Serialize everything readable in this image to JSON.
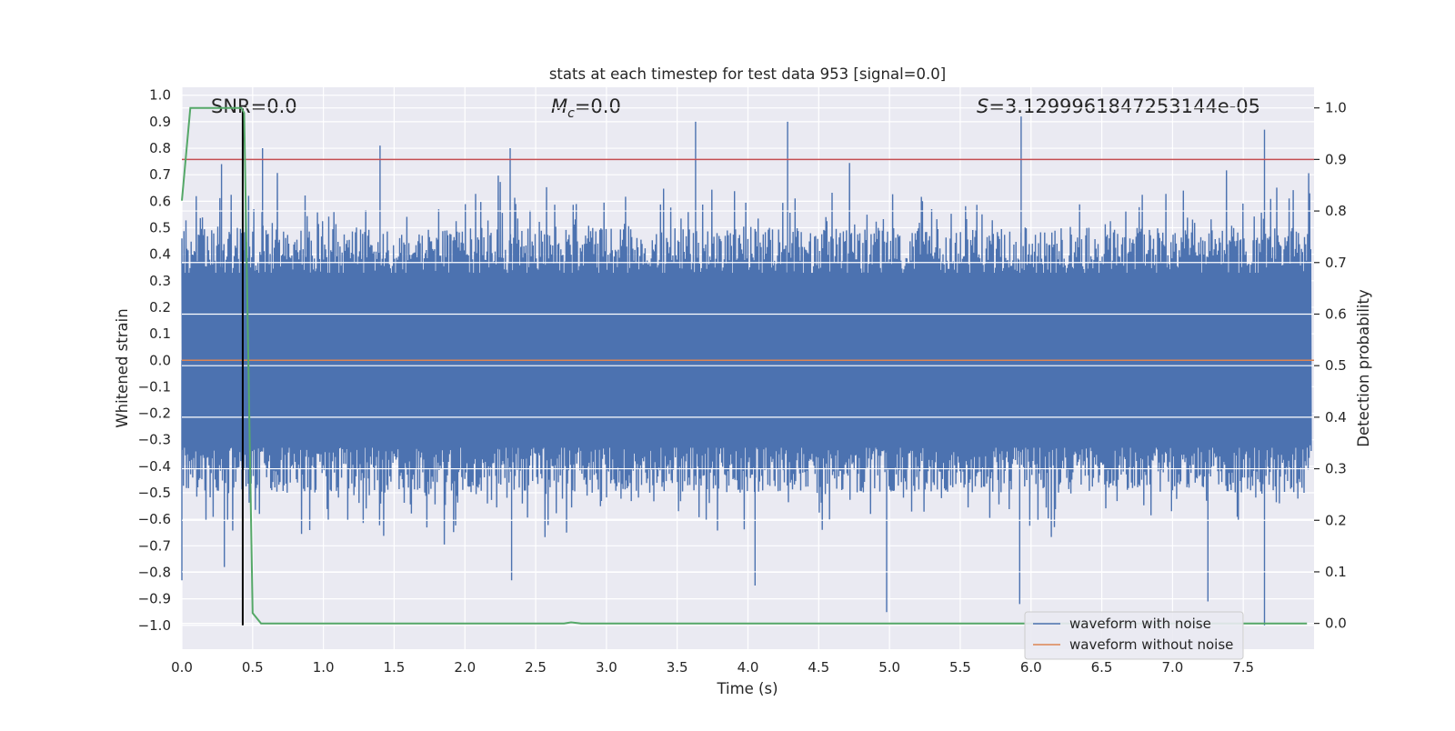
{
  "chart_data": {
    "type": "line",
    "title": "stats at each timestep for test data 953 [signal=0.0]",
    "xlabel": "Time (s)",
    "ylabel": "Whitened strain",
    "ylabel_right": "Detection probability",
    "xlim": [
      0.0,
      8.0
    ],
    "ylim": [
      -1.09,
      1.03
    ],
    "ylim_right": [
      -0.05,
      1.04
    ],
    "grid": true,
    "xticks": [
      0.0,
      0.5,
      1.0,
      1.5,
      2.0,
      2.5,
      3.0,
      3.5,
      4.0,
      4.5,
      5.0,
      5.5,
      6.0,
      6.5,
      7.0,
      7.5
    ],
    "xtick_labels": [
      "0.0",
      "0.5",
      "1.0",
      "1.5",
      "2.0",
      "2.5",
      "3.0",
      "3.5",
      "4.0",
      "4.5",
      "5.0",
      "5.5",
      "6.0",
      "6.5",
      "7.0",
      "7.5"
    ],
    "yticks": [
      1.0,
      0.9,
      0.8,
      0.7,
      0.6,
      0.5,
      0.4,
      0.3,
      0.2,
      0.1,
      0.0,
      -0.1,
      -0.2,
      -0.3,
      -0.4,
      -0.5,
      -0.6,
      -0.7,
      -0.8,
      -0.9,
      -1.0
    ],
    "ytick_labels": [
      "1.0",
      "0.9",
      "0.8",
      "0.7",
      "0.6",
      "0.5",
      "0.4",
      "0.3",
      "0.2",
      "0.1",
      "0.0",
      "−0.1",
      "−0.2",
      "−0.3",
      "−0.4",
      "−0.5",
      "−0.6",
      "−0.7",
      "−0.8",
      "−0.9",
      "−1.0"
    ],
    "yticks_right": [
      1.0,
      0.9,
      0.8,
      0.7,
      0.6,
      0.5,
      0.4,
      0.3,
      0.2,
      0.1,
      0.0
    ],
    "ytick_labels_right": [
      "1.0",
      "0.9",
      "0.8",
      "0.7",
      "0.6",
      "0.5",
      "0.4",
      "0.3",
      "0.2",
      "0.1",
      "0.0"
    ],
    "annotations": {
      "snr": "SNR=0.0",
      "mc_symbol": "M",
      "mc_sub": "c",
      "mc_value": "=0.0",
      "s_symbol": "S",
      "s_value": "=3.1299961847253144e-05"
    },
    "series": [
      {
        "name": "waveform with noise",
        "axis": "left",
        "color": "#4c72b0",
        "description_range": [
          -1.0,
          0.92
        ],
        "peaks": [
          {
            "x": 0.28,
            "y": 0.74
          },
          {
            "x": 0.57,
            "y": 0.8
          },
          {
            "x": 1.4,
            "y": 0.81
          },
          {
            "x": 2.32,
            "y": 0.8
          },
          {
            "x": 3.63,
            "y": 0.9
          },
          {
            "x": 4.28,
            "y": 0.9
          },
          {
            "x": 5.93,
            "y": 0.92
          },
          {
            "x": 7.65,
            "y": 0.87
          }
        ],
        "troughs": [
          {
            "x": 0.0,
            "y": -0.83
          },
          {
            "x": 0.3,
            "y": -0.78
          },
          {
            "x": 2.33,
            "y": -0.83
          },
          {
            "x": 4.05,
            "y": -0.85
          },
          {
            "x": 4.98,
            "y": -0.95
          },
          {
            "x": 5.92,
            "y": -0.92
          },
          {
            "x": 7.25,
            "y": -0.91
          },
          {
            "x": 7.65,
            "y": -1.0
          }
        ]
      },
      {
        "name": "waveform without noise",
        "axis": "left",
        "color": "#dd8452",
        "x": [
          0.0,
          8.0
        ],
        "y": [
          0.0,
          0.0
        ]
      },
      {
        "name": "",
        "axis": "right",
        "color": "#55a868",
        "x": [
          0.0,
          0.06,
          0.12,
          0.42,
          0.44,
          0.5,
          0.56,
          2.7,
          2.75,
          2.82,
          7.95
        ],
        "y": [
          0.82,
          1.0,
          1.0,
          1.0,
          0.99,
          0.02,
          0.0,
          0.0,
          0.002,
          0.0,
          0.0
        ]
      }
    ],
    "threshold_line": {
      "axis": "right",
      "y": 0.9,
      "color": "#c44e52"
    },
    "marker_line": {
      "x": 0.43,
      "y_from": -1.0,
      "y_to": 0.95,
      "color": "#000000"
    },
    "legend": {
      "placement": "lower-right",
      "entries": [
        {
          "label": "waveform with noise",
          "color": "#4c72b0"
        },
        {
          "label": "waveform without noise",
          "color": "#dd8452"
        }
      ]
    }
  },
  "colors": {
    "axes_bg": "#eaeaf2",
    "grid": "#ffffff",
    "text": "#262626"
  }
}
